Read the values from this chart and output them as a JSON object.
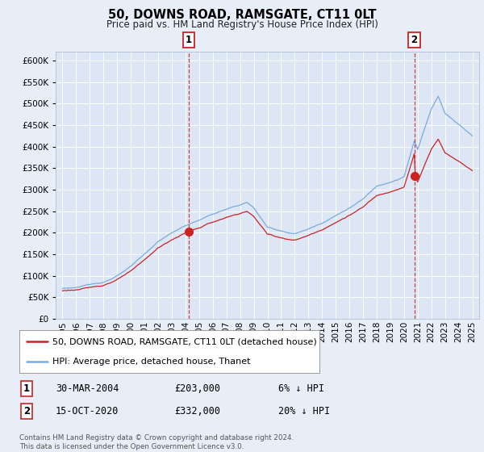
{
  "title": "50, DOWNS ROAD, RAMSGATE, CT11 0LT",
  "subtitle": "Price paid vs. HM Land Registry's House Price Index (HPI)",
  "background_color": "#e8eef8",
  "plot_bg_color": "#dce6f5",
  "grid_color": "#ffffff",
  "hpi_line_color": "#7aaadd",
  "price_line_color": "#cc2222",
  "t_sale1": 9.25,
  "t_sale2": 25.75,
  "price1": 203000,
  "price2": 332000,
  "legend_line1": "50, DOWNS ROAD, RAMSGATE, CT11 0LT (detached house)",
  "legend_line2": "HPI: Average price, detached house, Thanet",
  "table_row1": [
    "1",
    "30-MAR-2004",
    "£203,000",
    "6% ↓ HPI"
  ],
  "table_row2": [
    "2",
    "15-OCT-2020",
    "£332,000",
    "20% ↓ HPI"
  ],
  "footer": "Contains HM Land Registry data © Crown copyright and database right 2024.\nThis data is licensed under the Open Government Licence v3.0.",
  "ylim": [
    0,
    620000
  ],
  "year_start": 1995,
  "year_end": 2025
}
